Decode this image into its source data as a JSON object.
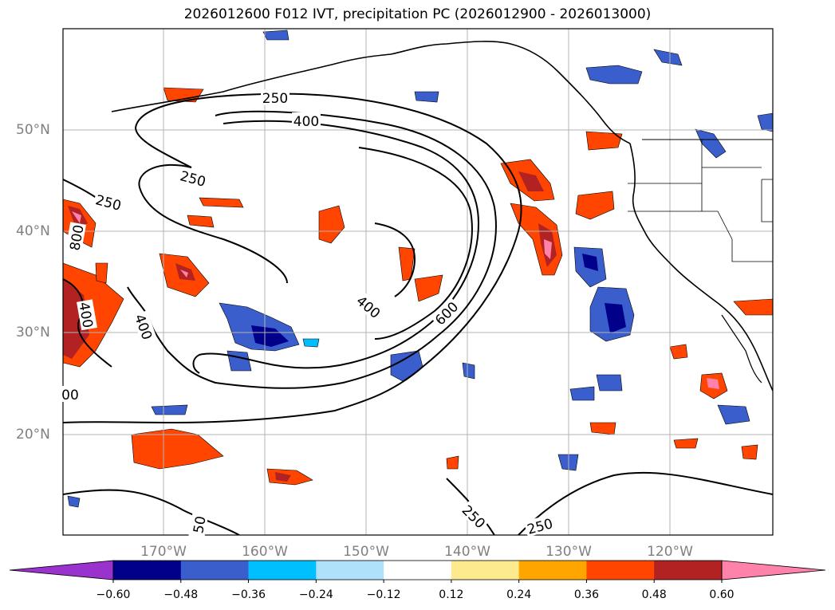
{
  "title": "2026012600 F012 IVT, precipitation PC (2026012900 - 2026013000)",
  "lat_labels": [
    "50°N",
    "40°N",
    "30°N",
    "20°N"
  ],
  "lon_labels": [
    "170°W",
    "160°W",
    "150°W",
    "140°W",
    "130°W",
    "120°W"
  ],
  "ivt_contour_labels": [
    "250",
    "400",
    "250",
    "250",
    "800",
    "400",
    "400",
    "400",
    "600",
    "250",
    "250",
    "00",
    "50"
  ],
  "colorbar": {
    "ticks": [
      "−0.60",
      "−0.48",
      "−0.36",
      "−0.24",
      "−0.12",
      "0.12",
      "0.24",
      "0.36",
      "0.48",
      "0.60"
    ],
    "colors": [
      "#9a32cd",
      "#00008b",
      "#3a5fcd",
      "#00bfff",
      "#afe1fa",
      "#ffffff",
      "#fdea8e",
      "#ffa500",
      "#ff4500",
      "#b22222",
      "#ff82ab"
    ]
  },
  "colors": {
    "grid": "#b3b3b3",
    "coast": "#000000",
    "contour": "#000000"
  }
}
